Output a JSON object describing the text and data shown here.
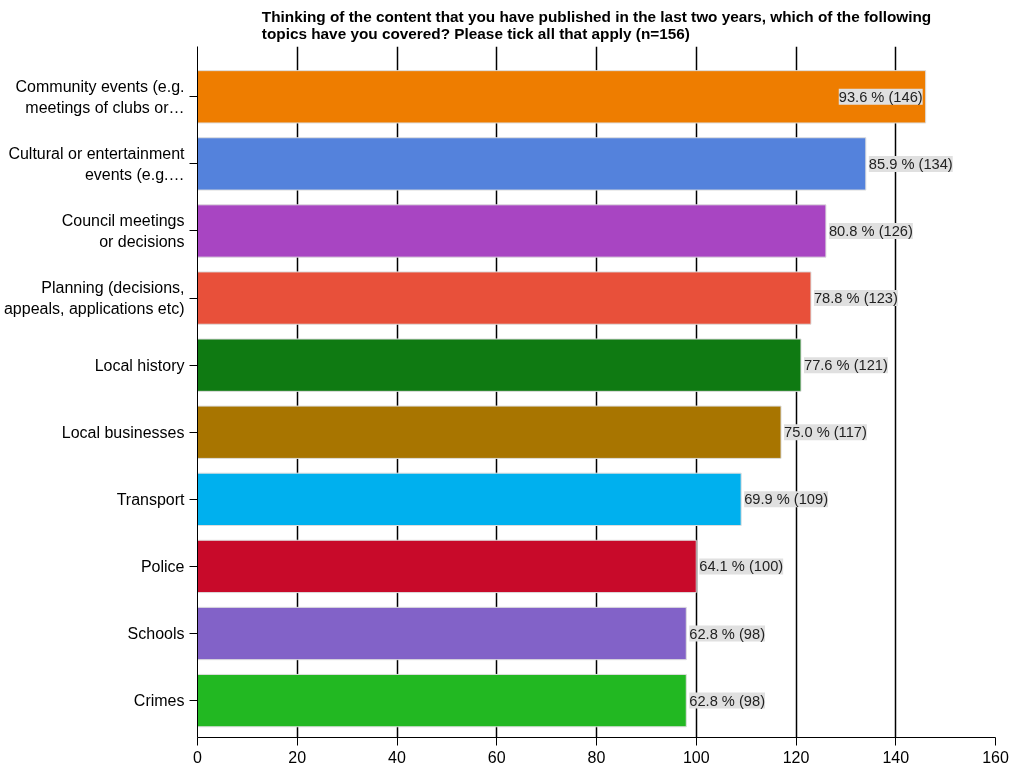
{
  "chart_data": {
    "type": "bar",
    "orientation": "horizontal",
    "title": "Thinking of the content that you have published in the last two years, which of the following\ntopics have you covered? Please tick all that apply (n=156)",
    "categories": [
      "Community events (e.g.\nmeetings of clubs or…",
      "Cultural or entertainment\nevents (e.g.…",
      "Council meetings\nor decisions",
      "Planning (decisions,\nappeals, applications etc)",
      "Local history",
      "Local businesses",
      "Transport",
      "Police",
      "Schools",
      "Crimes"
    ],
    "values": [
      146,
      134,
      126,
      123,
      121,
      117,
      109,
      100,
      98,
      98
    ],
    "colors": [
      "#ee7d00",
      "#5482dc",
      "#a845c2",
      "#e8503a",
      "#0f7a12",
      "#a87500",
      "#00b0ee",
      "#c80a2a",
      "#8262c8",
      "#22b822"
    ],
    "value_labels": [
      "93.6 % (146)",
      "85.9 % (134)",
      "80.8 % (126)",
      "78.8 % (123)",
      "77.6 % (121)",
      "75.0 % (117)",
      "69.9 % (109)",
      "64.1 % (100)",
      "62.8 % (98)",
      "62.8 % (98)"
    ],
    "xlim": [
      0,
      160
    ],
    "xticks": [
      0,
      20,
      40,
      60,
      80,
      100,
      120,
      140,
      160
    ],
    "grid": "x"
  }
}
